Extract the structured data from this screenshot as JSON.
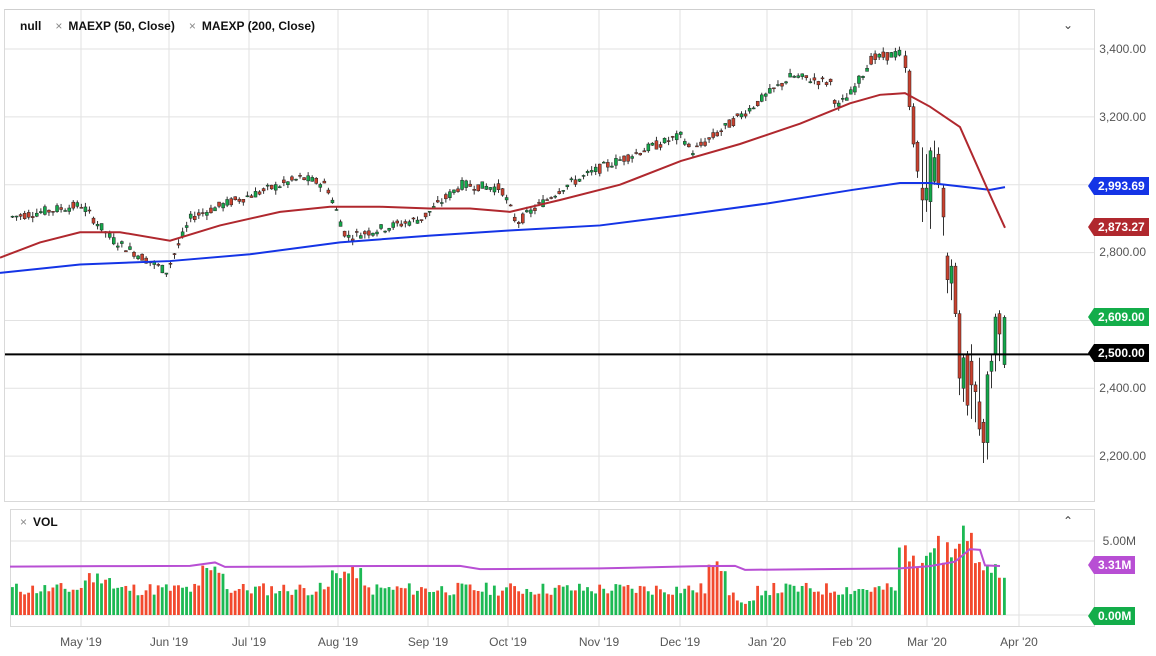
{
  "header": {
    "symbol": "null",
    "indicators": [
      {
        "label": "MAEXP (50, Close)",
        "close_icon": "×"
      },
      {
        "label": "MAEXP (200, Close)",
        "close_icon": "×"
      }
    ],
    "collapse_icon": "⌄"
  },
  "volume_pane": {
    "title": "VOL",
    "close_icon": "×",
    "collapse_icon": "⌃"
  },
  "price_axis": {
    "ticks": [
      "3,400.00",
      "3,200.00",
      "2,800.00",
      "2,400.00",
      "2,200.00"
    ],
    "tags": [
      {
        "label": "2,993.69",
        "color": "#1434e6",
        "name": "ma200-value"
      },
      {
        "label": "2,873.27",
        "color": "#b0282e",
        "name": "ma50-value"
      },
      {
        "label": "2,609.00",
        "color": "#13ad4a",
        "name": "last-price"
      },
      {
        "label": "2,500.00",
        "color": "#000000",
        "name": "horizontal-line-value"
      }
    ]
  },
  "volume_axis": {
    "ticks": [
      "5.00M"
    ],
    "tags": [
      {
        "label": "3.31M",
        "color": "#b84fd4",
        "name": "volume-ma-value"
      },
      {
        "label": "0.00M",
        "color": "#13ad4a",
        "name": "volume-last-value"
      }
    ]
  },
  "time_axis": {
    "labels": [
      "May '19",
      "Jun '19",
      "Jul '19",
      "Aug '19",
      "Sep '19",
      "Oct '19",
      "Nov '19",
      "Dec '19",
      "Jan '20",
      "Feb '20",
      "Mar '20",
      "Apr '20"
    ]
  },
  "colors": {
    "up": "#13a84a",
    "down": "#c9412e",
    "vol_up": "#1db954",
    "vol_down": "#f24a2e",
    "ma50": "#b0282e",
    "ma200": "#1434e6",
    "vol_ma": "#b84fd4",
    "hline": "#000000",
    "grid": "#e2e2e2"
  },
  "chart_data": {
    "type": "candlestick",
    "title": "",
    "instrument": "null",
    "x_range": [
      "Apr '19",
      "Mar '20"
    ],
    "y_range": [
      2150,
      3450
    ],
    "grid": true,
    "legend_position": "top-left",
    "x_tick_labels": [
      "May '19",
      "Jun '19",
      "Jul '19",
      "Aug '19",
      "Sep '19",
      "Oct '19",
      "Nov '19",
      "Dec '19",
      "Jan '20",
      "Feb '20",
      "Mar '20",
      "Apr '20"
    ],
    "y_tick_labels": [
      "2,200.00",
      "2,400.00",
      "2,800.00",
      "3,200.00",
      "3,400.00"
    ],
    "horizontal_line": 2500,
    "last_values": {
      "close": 2609.0,
      "ma50": 2873.27,
      "ma200": 2993.69,
      "volume_ma": "3.31M",
      "volume": "0.00M"
    },
    "ohlc_anchor_closes": [
      {
        "date": "Apr '19",
        "close": 2905
      },
      {
        "date": "May '19 early",
        "close": 2940
      },
      {
        "date": "May '19 mid",
        "close": 2840
      },
      {
        "date": "Jun '19 low",
        "close": 2745
      },
      {
        "date": "Jun '19 end",
        "close": 2945
      },
      {
        "date": "Jul '19 high",
        "close": 3020
      },
      {
        "date": "Aug '19 low",
        "close": 2845
      },
      {
        "date": "Sep '19",
        "close": 3000
      },
      {
        "date": "Oct '19 low",
        "close": 2887
      },
      {
        "date": "Nov '19",
        "close": 3110
      },
      {
        "date": "Dec '19 low",
        "close": 3095
      },
      {
        "date": "Jan '20",
        "close": 3330
      },
      {
        "date": "Jan '20 end",
        "close": 3225
      },
      {
        "date": "Feb '20 high",
        "close": 3386
      },
      {
        "date": "Feb '20 end",
        "close": 2954
      },
      {
        "date": "Mar '20 low",
        "close": 2237
      },
      {
        "date": "Mar '20 end",
        "close": 2609
      }
    ],
    "series": [
      {
        "name": "MAEXP (50, Close)",
        "color": "#b0282e",
        "points": [
          [
            0,
            2785
          ],
          [
            40,
            2830
          ],
          [
            80,
            2860
          ],
          [
            120,
            2860
          ],
          [
            170,
            2835
          ],
          [
            220,
            2880
          ],
          [
            280,
            2920
          ],
          [
            330,
            2935
          ],
          [
            380,
            2935
          ],
          [
            430,
            2930
          ],
          [
            470,
            2930
          ],
          [
            510,
            2920
          ],
          [
            560,
            2955
          ],
          [
            620,
            3000
          ],
          [
            681,
            3070
          ],
          [
            740,
            3120
          ],
          [
            800,
            3180
          ],
          [
            850,
            3240
          ],
          [
            880,
            3265
          ],
          [
            905,
            3270
          ],
          [
            930,
            3230
          ],
          [
            960,
            3170
          ],
          [
            990,
            2970
          ],
          [
            1005,
            2873
          ]
        ]
      },
      {
        "name": "MAEXP (200, Close)",
        "color": "#1434e6",
        "points": [
          [
            0,
            2740
          ],
          [
            80,
            2765
          ],
          [
            170,
            2775
          ],
          [
            250,
            2795
          ],
          [
            340,
            2830
          ],
          [
            430,
            2850
          ],
          [
            509,
            2865
          ],
          [
            600,
            2880
          ],
          [
            681,
            2910
          ],
          [
            768,
            2945
          ],
          [
            853,
            2985
          ],
          [
            900,
            3005
          ],
          [
            930,
            3005
          ],
          [
            960,
            2995
          ],
          [
            990,
            2985
          ],
          [
            1005,
            2993
          ]
        ]
      },
      {
        "name": "VOL MA",
        "color": "#b84fd4",
        "unit": "M",
        "points": [
          [
            10,
            3.27
          ],
          [
            100,
            3.3
          ],
          [
            190,
            3.32
          ],
          [
            215,
            3.55
          ],
          [
            225,
            3.25
          ],
          [
            300,
            3.27
          ],
          [
            340,
            3.3
          ],
          [
            460,
            3.32
          ],
          [
            480,
            3.1
          ],
          [
            600,
            3.15
          ],
          [
            700,
            3.3
          ],
          [
            735,
            3.32
          ],
          [
            745,
            3.05
          ],
          [
            820,
            3.1
          ],
          [
            900,
            3.15
          ],
          [
            930,
            3.3
          ],
          [
            955,
            3.6
          ],
          [
            970,
            4.45
          ],
          [
            980,
            4.4
          ],
          [
            985,
            3.35
          ],
          [
            1000,
            3.31
          ]
        ]
      }
    ]
  }
}
